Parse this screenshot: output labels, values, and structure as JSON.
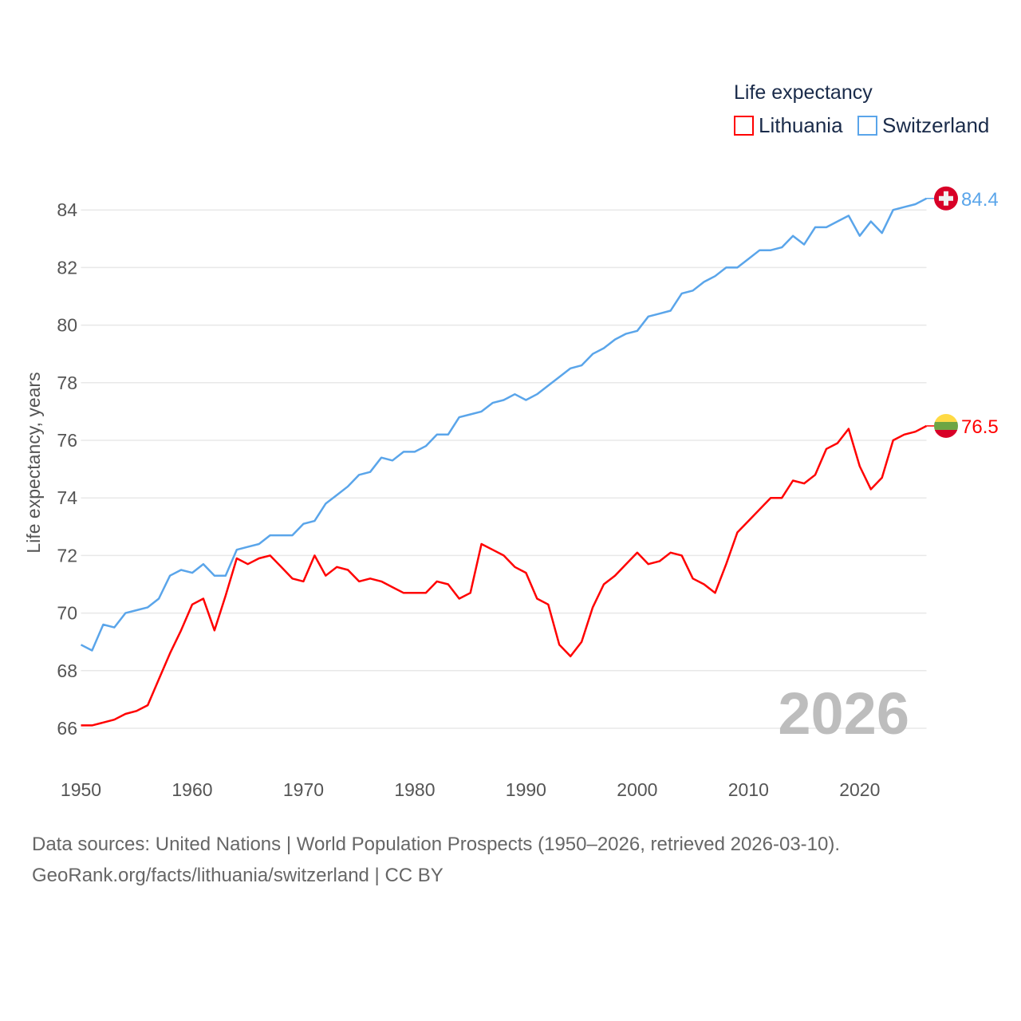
{
  "chart_data": {
    "type": "line",
    "ylabel": "Life expectancy, years",
    "xlabel": "",
    "legend_title": "Life expectancy",
    "legend_position": "top-right",
    "xlim": [
      1950,
      2026
    ],
    "ylim": [
      64.8,
      85
    ],
    "x_ticks": [
      1950,
      1960,
      1970,
      1980,
      1990,
      2000,
      2010,
      2020
    ],
    "y_ticks": [
      66,
      68,
      70,
      72,
      74,
      76,
      78,
      80,
      82,
      84
    ],
    "grid": true,
    "watermark_year": "2026",
    "x": [
      1950,
      1951,
      1952,
      1953,
      1954,
      1955,
      1956,
      1957,
      1958,
      1959,
      1960,
      1961,
      1962,
      1963,
      1964,
      1965,
      1966,
      1967,
      1968,
      1969,
      1970,
      1971,
      1972,
      1973,
      1974,
      1975,
      1976,
      1977,
      1978,
      1979,
      1980,
      1981,
      1982,
      1983,
      1984,
      1985,
      1986,
      1987,
      1988,
      1989,
      1990,
      1991,
      1992,
      1993,
      1994,
      1995,
      1996,
      1997,
      1998,
      1999,
      2000,
      2001,
      2002,
      2003,
      2004,
      2005,
      2006,
      2007,
      2008,
      2009,
      2010,
      2011,
      2012,
      2013,
      2014,
      2015,
      2016,
      2017,
      2018,
      2019,
      2020,
      2021,
      2022,
      2023,
      2024,
      2025,
      2026
    ],
    "series": [
      {
        "name": "Lithuania",
        "color": "#ff0000",
        "end_label": "76.5",
        "flag": "lithuania-flag",
        "values": [
          66.1,
          66.1,
          66.2,
          66.3,
          66.5,
          66.6,
          66.8,
          67.7,
          68.6,
          69.4,
          70.3,
          70.5,
          69.4,
          70.6,
          71.9,
          71.7,
          71.9,
          72.0,
          71.6,
          71.2,
          71.1,
          72.0,
          71.3,
          71.6,
          71.5,
          71.1,
          71.2,
          71.1,
          70.9,
          70.7,
          70.7,
          70.7,
          71.1,
          71.0,
          70.5,
          70.7,
          72.4,
          72.2,
          72.0,
          71.6,
          71.4,
          70.5,
          70.3,
          68.9,
          68.5,
          69.0,
          70.2,
          71.0,
          71.3,
          71.7,
          72.1,
          71.7,
          71.8,
          72.1,
          72.0,
          71.2,
          71.0,
          70.7,
          71.7,
          72.8,
          73.2,
          73.6,
          74.0,
          74.0,
          74.6,
          74.5,
          74.8,
          75.7,
          75.9,
          76.4,
          75.1,
          74.3,
          74.7,
          76.0,
          76.2,
          76.3,
          76.5
        ]
      },
      {
        "name": "Switzerland",
        "color": "#5aa5ea",
        "end_label": "84.4",
        "flag": "switzerland-flag",
        "values": [
          68.9,
          68.7,
          69.6,
          69.5,
          70.0,
          70.1,
          70.2,
          70.5,
          71.3,
          71.5,
          71.4,
          71.7,
          71.3,
          71.3,
          72.2,
          72.3,
          72.4,
          72.7,
          72.7,
          72.7,
          73.1,
          73.2,
          73.8,
          74.1,
          74.4,
          74.8,
          74.9,
          75.4,
          75.3,
          75.6,
          75.6,
          75.8,
          76.2,
          76.2,
          76.8,
          76.9,
          77.0,
          77.3,
          77.4,
          77.6,
          77.4,
          77.6,
          77.9,
          78.2,
          78.5,
          78.6,
          79.0,
          79.2,
          79.5,
          79.7,
          79.8,
          80.3,
          80.4,
          80.5,
          81.1,
          81.2,
          81.5,
          81.7,
          82.0,
          82.0,
          82.3,
          82.6,
          82.6,
          82.7,
          83.1,
          82.8,
          83.4,
          83.4,
          83.6,
          83.8,
          83.1,
          83.6,
          83.2,
          84.0,
          84.1,
          84.2,
          84.4
        ]
      }
    ]
  },
  "footer": {
    "line1": "Data sources: United Nations | World Population Prospects (1950–2026, retrieved 2026-03-10).",
    "line2": "GeoRank.org/facts/lithuania/switzerland | CC BY"
  }
}
